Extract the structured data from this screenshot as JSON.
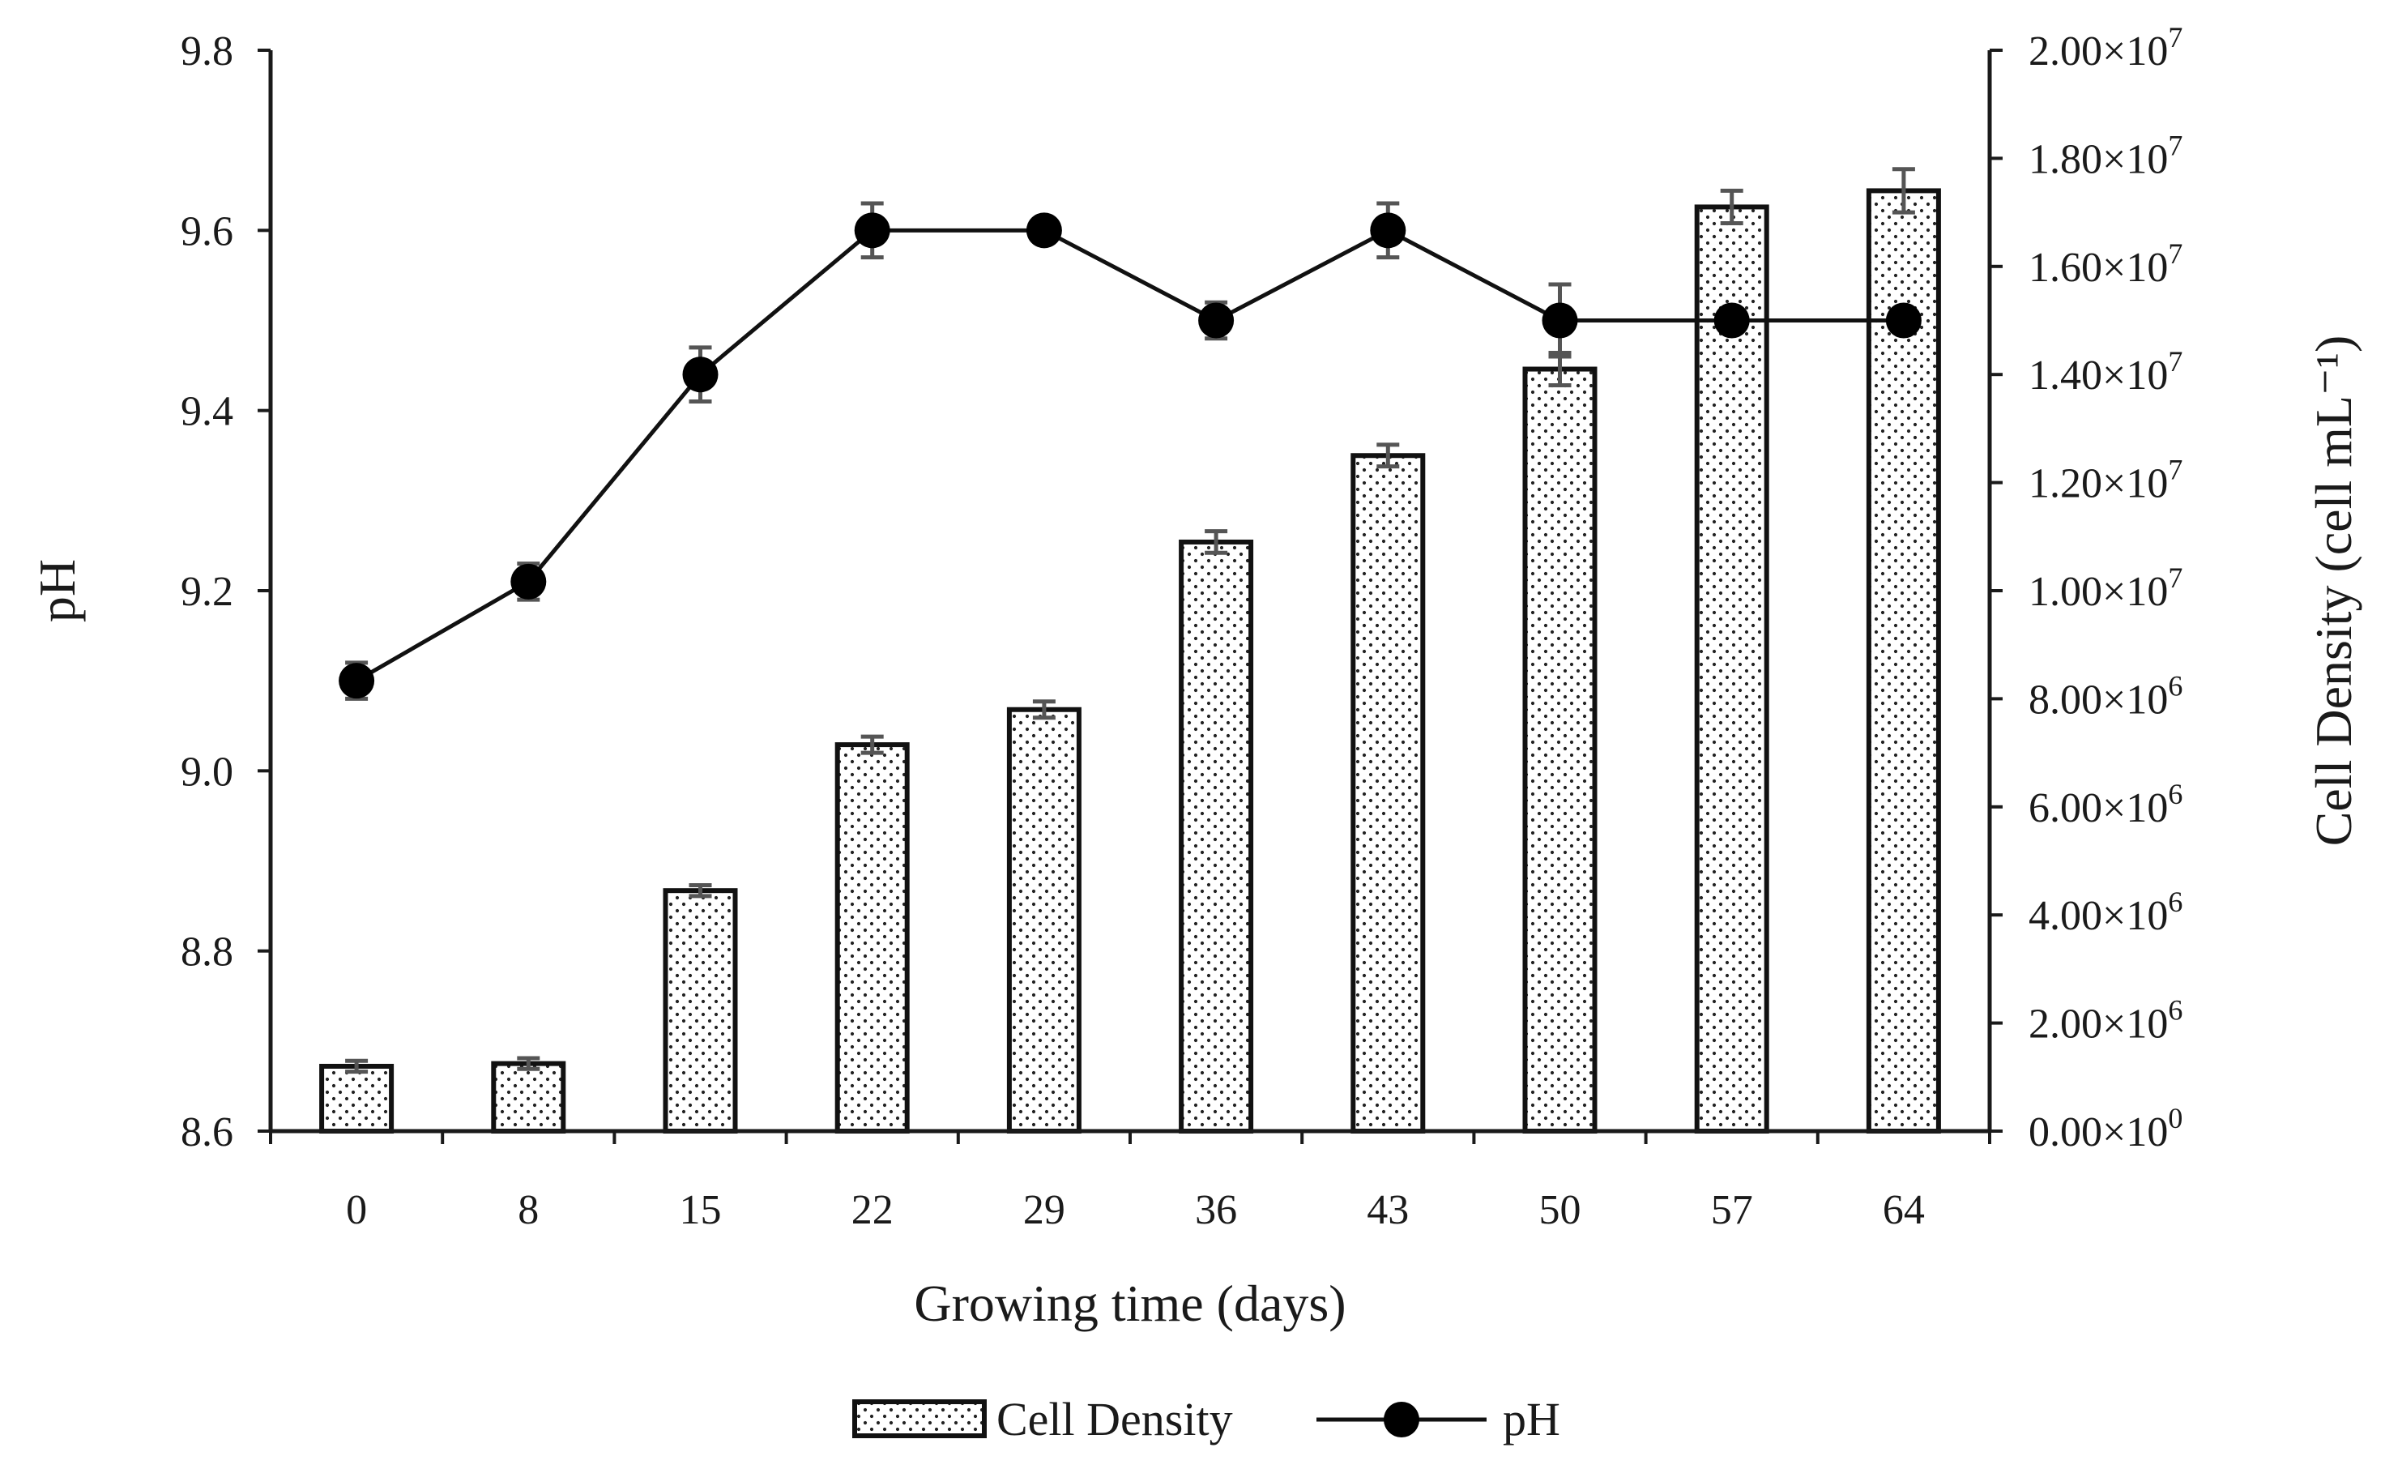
{
  "chart_data": {
    "type": "bar+line",
    "title": "",
    "xlabel": "Growing time (days)",
    "ylabel_left": "pH",
    "ylabel_right": "Cell Density (cell mL⁻¹)",
    "categories": [
      "0",
      "8",
      "15",
      "22",
      "29",
      "36",
      "43",
      "50",
      "57",
      "64"
    ],
    "series": [
      {
        "name": "Cell Density",
        "kind": "bar",
        "axis": "right",
        "values": [
          1200000,
          1250000,
          4450000,
          7150000,
          7800000,
          10900000,
          12500000,
          14100000,
          17100000,
          17400000
        ],
        "errors": [
          100000,
          100000,
          100000,
          150000,
          150000,
          200000,
          200000,
          300000,
          300000,
          400000
        ]
      },
      {
        "name": "pH",
        "kind": "line",
        "axis": "left",
        "values": [
          9.1,
          9.21,
          9.44,
          9.6,
          9.6,
          9.5,
          9.6,
          9.5,
          9.5,
          9.5
        ],
        "errors": [
          0.02,
          0.02,
          0.03,
          0.03,
          0.01,
          0.02,
          0.03,
          0.04,
          0.01,
          0.01
        ]
      }
    ],
    "ylim_left": [
      8.6,
      9.8
    ],
    "yticks_left": [
      "8.6",
      "8.8",
      "9.0",
      "9.2",
      "9.4",
      "9.6",
      "9.8"
    ],
    "ylim_right": [
      0,
      20000000
    ],
    "yticks_right": [
      {
        "mantissa": "0.00",
        "exp": "0"
      },
      {
        "mantissa": "2.00",
        "exp": "6"
      },
      {
        "mantissa": "4.00",
        "exp": "6"
      },
      {
        "mantissa": "6.00",
        "exp": "6"
      },
      {
        "mantissa": "8.00",
        "exp": "6"
      },
      {
        "mantissa": "1.00",
        "exp": "7"
      },
      {
        "mantissa": "1.20",
        "exp": "7"
      },
      {
        "mantissa": "1.40",
        "exp": "7"
      },
      {
        "mantissa": "1.60",
        "exp": "7"
      },
      {
        "mantissa": "1.80",
        "exp": "7"
      },
      {
        "mantissa": "2.00",
        "exp": "7"
      }
    ],
    "legend": {
      "position": "bottom-center",
      "items": [
        {
          "label": "Cell Density",
          "symbol": "dotted-bar"
        },
        {
          "label": "pH",
          "symbol": "line-marker"
        }
      ]
    },
    "grid": false
  }
}
